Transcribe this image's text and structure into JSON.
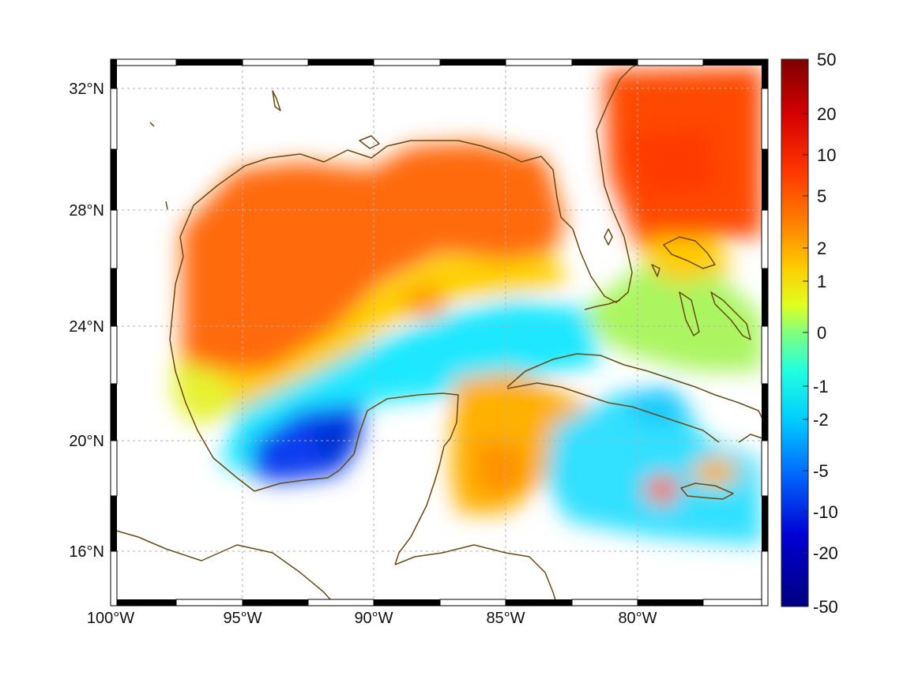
{
  "map": {
    "extent": {
      "lon_min": -100,
      "lon_max": -75,
      "lat_min": 14,
      "lat_max": 33
    },
    "lon_labels": [
      "100°W",
      "95°W",
      "90°W",
      "85°W",
      "80°W"
    ],
    "lat_labels": [
      "32°N",
      "28°N",
      "24°N",
      "20°N",
      "16°N"
    ],
    "grid": true,
    "coastline_color": "#6b4a12",
    "land_color": "#ffffff",
    "frame_style": "alternating black/white border"
  },
  "colorbar": {
    "labels": [
      "50",
      "20",
      "10",
      "5",
      "2",
      "1",
      "0",
      "-1",
      "-2",
      "-5",
      "-10",
      "-20",
      "-50"
    ],
    "colormap": "jet",
    "scale": "nonlinear",
    "colors": [
      "#7f0000",
      "#d40000",
      "#ff3300",
      "#ff8000",
      "#ffcc00",
      "#dfff20",
      "#80ff80",
      "#20ffdf",
      "#00ccff",
      "#0066ff",
      "#0000d4",
      "#00007f"
    ]
  }
}
